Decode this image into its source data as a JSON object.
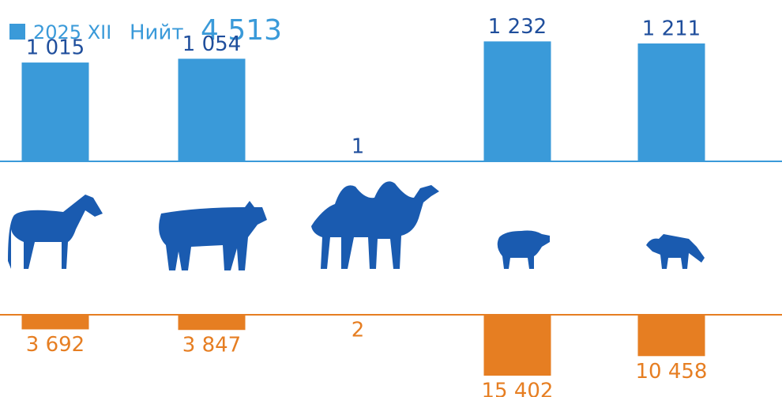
{
  "chart_data": {
    "type": "bar",
    "categories": [
      null,
      null,
      null,
      null,
      null
    ],
    "series": [
      {
        "name": "2025 XII",
        "color": "#3a9ad9",
        "values": [
          1015,
          1054,
          1,
          1232,
          1211
        ],
        "value_labels": [
          "1 015",
          "1 054",
          "1",
          "1 232",
          "1 211"
        ]
      },
      {
        "color": "#e67e22",
        "axis": "y2",
        "values": [
          3692,
          3847,
          2,
          15402,
          10458
        ],
        "value_labels": [
          "3 692",
          "3 847",
          "2",
          "15 402",
          "10 458"
        ]
      }
    ],
    "total": {
      "label": "Нийт",
      "value": 4513,
      "value_label": "4 513"
    },
    "ylim": [
      0,
      1300
    ],
    "y2lim": [
      0,
      16000
    ]
  }
}
